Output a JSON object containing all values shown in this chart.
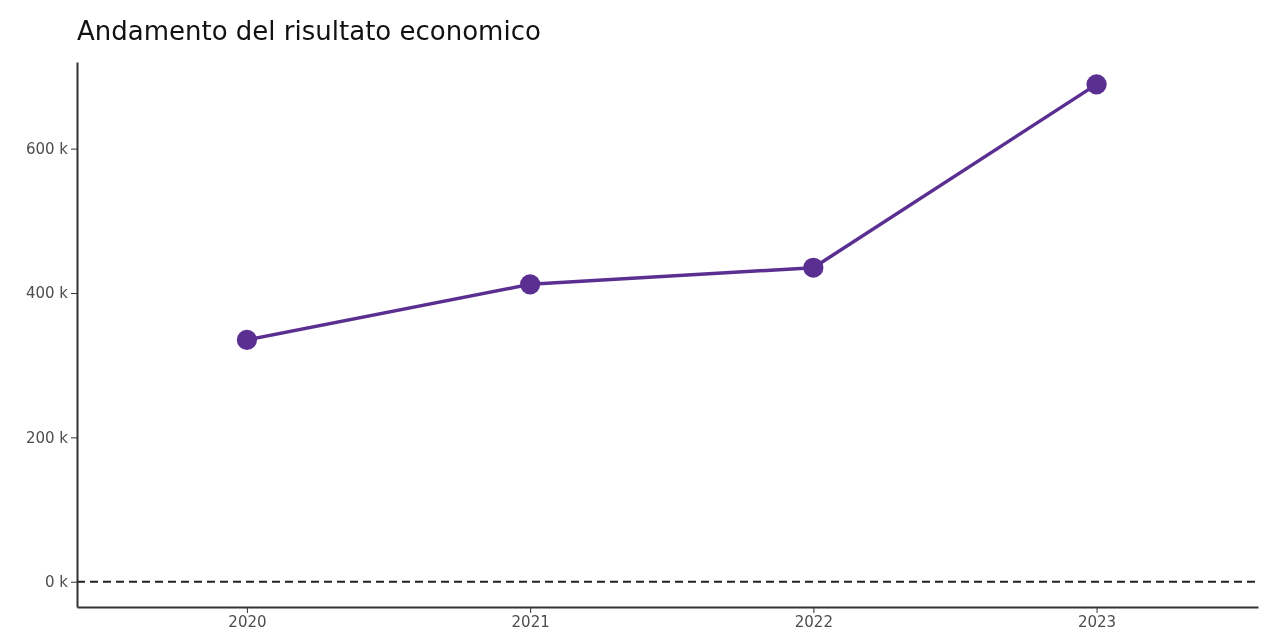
{
  "chart_data": {
    "type": "line",
    "title": "Andamento del risultato economico",
    "x": [
      2020,
      2021,
      2022,
      2023
    ],
    "series": [
      {
        "color": "#5b2f91",
        "values": [
          335000,
          412000,
          435000,
          689000
        ]
      }
    ],
    "xlim": [
      2019.4,
      2023.57
    ],
    "xticks": [
      2020,
      2021,
      2022,
      2023
    ],
    "ylim": [
      -35000,
      720000
    ],
    "yticks": [
      {
        "value": 0,
        "label": "0 k"
      },
      {
        "value": 200000,
        "label": "200 k"
      },
      {
        "value": 400000,
        "label": "400 k"
      },
      {
        "value": 600000,
        "label": "600 k"
      }
    ],
    "ref_lines": [
      {
        "axis": "y",
        "value": 0,
        "color": "#222222",
        "line_style": "dashed"
      }
    ],
    "marker": "circle",
    "line_style": "solid"
  }
}
